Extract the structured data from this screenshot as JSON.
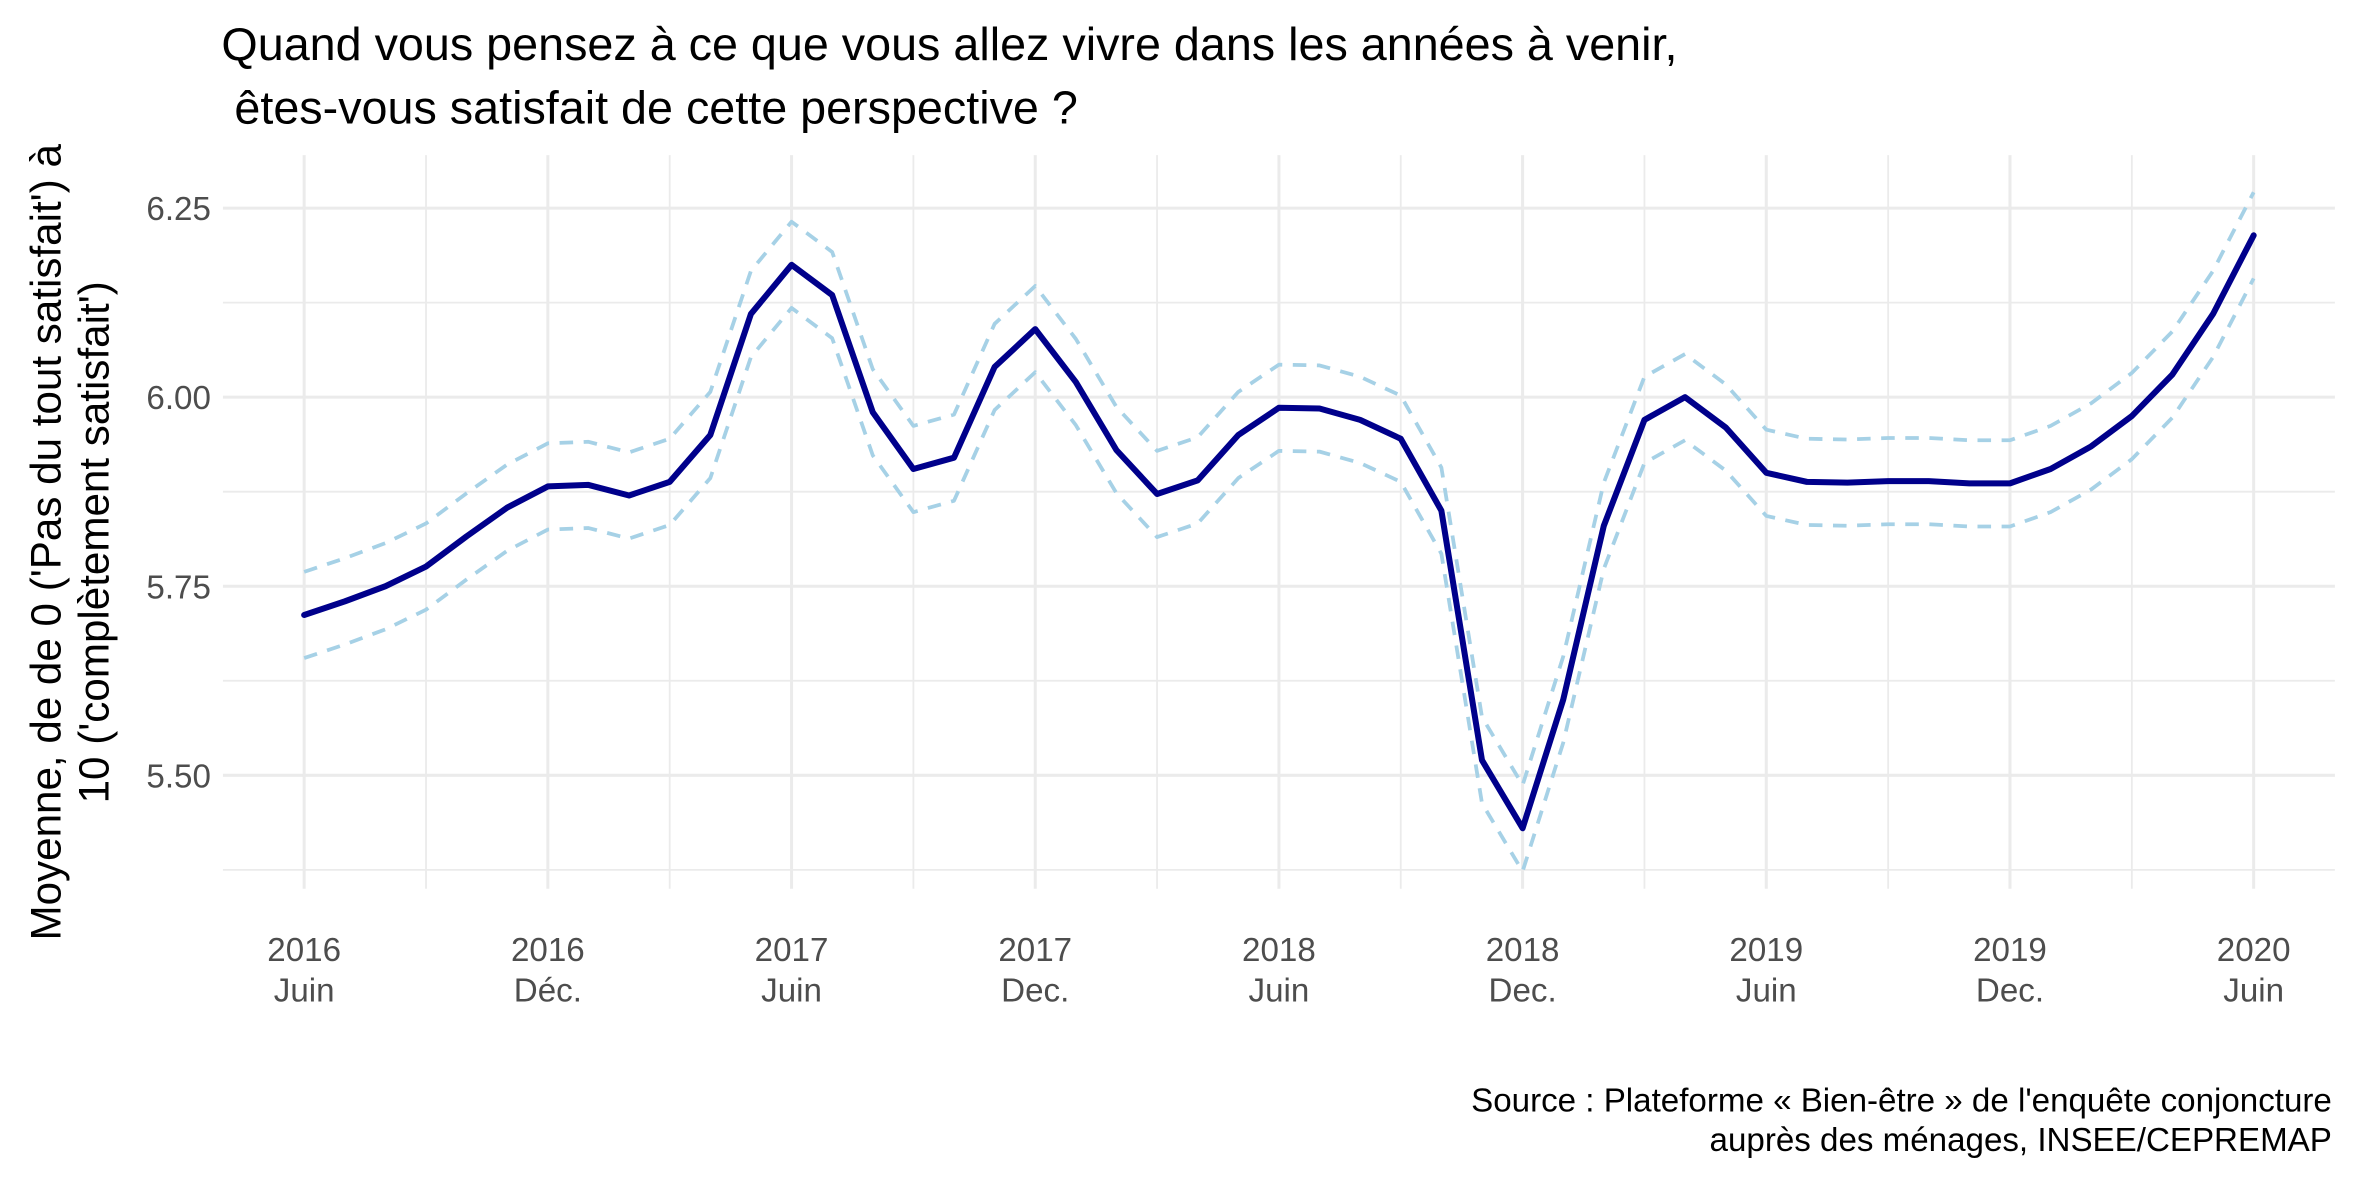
{
  "chart_data": {
    "type": "line",
    "title": [
      "Quand vous pensez à ce que vous allez vivre dans les années à venir,",
      " êtes-vous satisfait de cette perspective ?"
    ],
    "ylabel": [
      "Moyenne, de de 0 ('Pas du tout satisfait') à",
      "10 ('complètement satisfait')"
    ],
    "source": [
      "Source : Plateforme « Bien-être » de l'enquête conjoncture",
      "auprès des ménages, INSEE/CEPREMAP"
    ],
    "x": [
      "2016-06",
      "2016-07",
      "2016-08",
      "2016-09",
      "2016-10",
      "2016-11",
      "2016-12",
      "2017-01",
      "2017-02",
      "2017-03",
      "2017-04",
      "2017-05",
      "2017-06",
      "2017-07",
      "2017-08",
      "2017-09",
      "2017-10",
      "2017-11",
      "2017-12",
      "2018-01",
      "2018-02",
      "2018-03",
      "2018-04",
      "2018-05",
      "2018-06",
      "2018-07",
      "2018-08",
      "2018-09",
      "2018-10",
      "2018-11",
      "2018-12",
      "2019-01",
      "2019-02",
      "2019-03",
      "2019-04",
      "2019-05",
      "2019-06",
      "2019-07",
      "2019-08",
      "2019-09",
      "2019-10",
      "2019-11",
      "2019-12",
      "2020-01",
      "2020-02",
      "2020-03",
      "2020-04",
      "2020-05",
      "2020-06"
    ],
    "series": [
      {
        "color": "#a6d1e6",
        "dash": true,
        "values": [
          5.769,
          5.787,
          5.807,
          5.833,
          5.873,
          5.911,
          5.939,
          5.941,
          5.927,
          5.945,
          6.007,
          6.167,
          6.232,
          6.192,
          6.037,
          5.962,
          5.977,
          6.097,
          6.147,
          6.077,
          5.987,
          5.929,
          5.947,
          6.007,
          6.043,
          6.042,
          6.027,
          6.002,
          5.907,
          5.577,
          5.487,
          5.657,
          5.887,
          6.027,
          6.057,
          6.017,
          5.957,
          5.945,
          5.944,
          5.946,
          5.946,
          5.943,
          5.943,
          5.962,
          5.992,
          6.032,
          6.087,
          6.167,
          6.271
        ]
      },
      {
        "color": "#a6d1e6",
        "dash": true,
        "values": [
          5.655,
          5.673,
          5.693,
          5.719,
          5.759,
          5.797,
          5.825,
          5.827,
          5.813,
          5.831,
          5.893,
          6.053,
          6.118,
          6.078,
          5.923,
          5.848,
          5.863,
          5.983,
          6.033,
          5.963,
          5.873,
          5.815,
          5.833,
          5.893,
          5.929,
          5.928,
          5.913,
          5.888,
          5.793,
          5.463,
          5.373,
          5.543,
          5.773,
          5.913,
          5.943,
          5.903,
          5.843,
          5.831,
          5.83,
          5.832,
          5.832,
          5.829,
          5.829,
          5.848,
          5.878,
          5.918,
          5.973,
          6.053,
          6.157
        ]
      },
      {
        "color": "#00008b",
        "dash": false,
        "values": [
          5.712,
          5.73,
          5.75,
          5.776,
          5.816,
          5.854,
          5.882,
          5.884,
          5.87,
          5.888,
          5.95,
          6.11,
          6.175,
          6.135,
          5.98,
          5.905,
          5.92,
          6.04,
          6.09,
          6.02,
          5.93,
          5.872,
          5.89,
          5.95,
          5.986,
          5.985,
          5.97,
          5.945,
          5.85,
          5.52,
          5.43,
          5.6,
          5.83,
          5.97,
          6.0,
          5.96,
          5.9,
          5.888,
          5.887,
          5.889,
          5.889,
          5.886,
          5.886,
          5.905,
          5.935,
          5.975,
          6.03,
          6.11,
          6.214
        ]
      }
    ],
    "xlim": [
      "2016-04",
      "2020-08"
    ],
    "xticks": [
      {
        "value": "2016-06",
        "label": [
          "2016",
          "Juin"
        ]
      },
      {
        "value": "2016-12",
        "label": [
          "2016",
          "Déc."
        ]
      },
      {
        "value": "2017-06",
        "label": [
          "2017",
          "Juin"
        ]
      },
      {
        "value": "2017-12",
        "label": [
          "2017",
          "Dec."
        ]
      },
      {
        "value": "2018-06",
        "label": [
          "2018",
          "Juin"
        ]
      },
      {
        "value": "2018-12",
        "label": [
          "2018",
          "Dec."
        ]
      },
      {
        "value": "2019-06",
        "label": [
          "2019",
          "Juin"
        ]
      },
      {
        "value": "2019-12",
        "label": [
          "2019",
          "Dec."
        ]
      },
      {
        "value": "2020-06",
        "label": [
          "2020",
          "Juin"
        ]
      }
    ],
    "ylim": [
      5.35,
      6.32
    ],
    "yticks": [
      {
        "value": 5.5,
        "label": "5.50"
      },
      {
        "value": 5.75,
        "label": "5.75"
      },
      {
        "value": 6,
        "label": "6.00"
      },
      6.25
    ],
    "grid": true
  }
}
